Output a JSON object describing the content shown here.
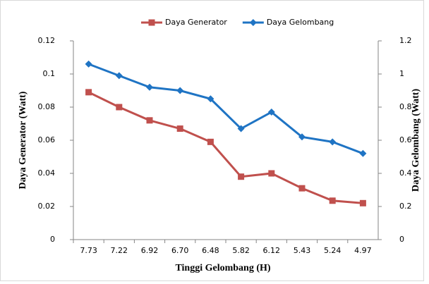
{
  "chart_data": {
    "type": "line",
    "categories": [
      "7.73",
      "7.22",
      "6.92",
      "6.70",
      "6.48",
      "5.82",
      "6.12",
      "5.43",
      "5.24",
      "4.97"
    ],
    "series": [
      {
        "name": "Daya Generator",
        "color": "#c0504d",
        "marker": "square",
        "values": [
          0.089,
          0.08,
          0.072,
          0.067,
          0.059,
          0.038,
          0.04,
          0.031,
          0.0235,
          0.022
        ]
      },
      {
        "name": "Daya Gelombang",
        "color": "#1f74c4",
        "marker": "diamond",
        "axis": "y2",
        "values": [
          1.06,
          0.99,
          0.92,
          0.9,
          0.85,
          0.67,
          0.77,
          0.62,
          0.59,
          0.52
        ]
      }
    ],
    "ylim": [
      0,
      0.12
    ],
    "yticks": [
      0,
      0.02,
      0.04,
      0.06,
      0.08,
      0.1,
      0.12
    ],
    "y2lim": [
      0,
      1.2
    ],
    "y2ticks": [
      0,
      0.2,
      0.4,
      0.6,
      0.8,
      1,
      1.2
    ],
    "xlabel": "Tinggi Gelombang (H)",
    "ylabel": "Daya Generator (Watt)",
    "y2label": "Daya Gelombang (Watt)",
    "grid": false,
    "legend": "top"
  }
}
